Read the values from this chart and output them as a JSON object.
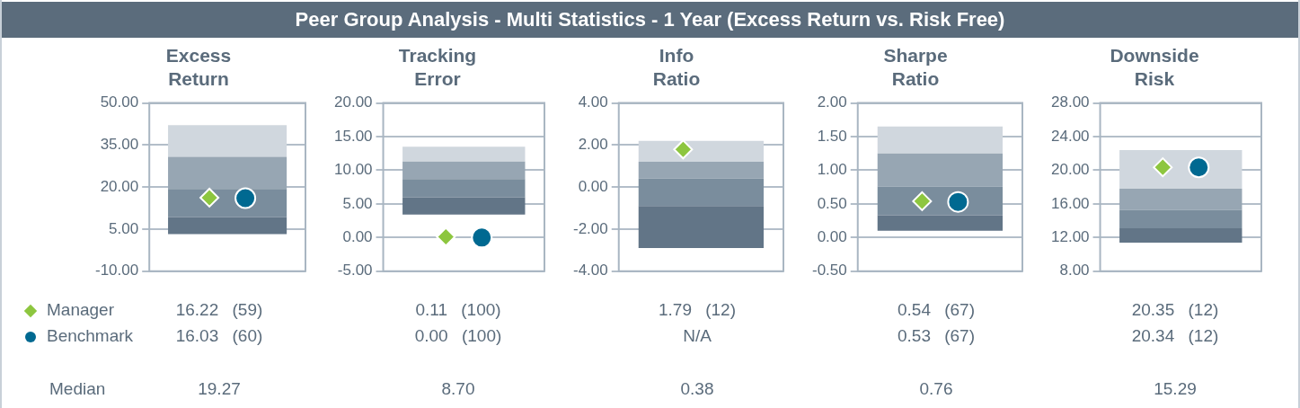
{
  "chart_data": [
    {
      "type": "other",
      "title": "Peer Group Analysis - Multi Statistics - 1 Year (Excess Return vs. Risk Free)",
      "annotations": [
        "Median"
      ]
    },
    {
      "type": "bar",
      "title": "Excess Return",
      "categories": [
        null
      ],
      "grid": "y",
      "legend": "bottom left",
      "ylim": [
        -10,
        50
      ],
      "yticks": [
        {
          "value": -10,
          "label": "-10.00"
        },
        {
          "value": 5,
          "label": "5.00"
        },
        {
          "value": 20,
          "label": "20.00"
        },
        {
          "value": 35,
          "label": "35.00"
        },
        {
          "value": 50,
          "label": "50.00"
        }
      ],
      "annotations": [
        "16.22 (59)",
        "16.03 (60)",
        "19.27"
      ],
      "series": [
        {
          "color": "#627587",
          "base": [
            3.2
          ],
          "values": [
            6.1
          ]
        },
        {
          "color": "#7a8d9d",
          "base": [
            9.3
          ],
          "values": [
            10.0
          ]
        },
        {
          "color": "#97a6b3",
          "base": [
            19.3
          ],
          "values": [
            11.5
          ]
        },
        {
          "color": "#d0d7de",
          "base": [
            30.8
          ],
          "values": [
            11.3
          ]
        },
        {
          "type": "scatter",
          "name": "Manager",
          "marker": "diamond",
          "color": "#8dc63f",
          "values": [
            16.22
          ]
        },
        {
          "type": "scatter",
          "name": "Benchmark",
          "marker": "circle",
          "color": "#006991",
          "values": [
            16.03
          ]
        }
      ]
    },
    {
      "type": "bar",
      "title": "Tracking Error",
      "categories": [
        null
      ],
      "grid": "y",
      "ylim": [
        -5,
        20
      ],
      "yticks": [
        {
          "value": -5,
          "label": "-5.00"
        },
        {
          "value": 0,
          "label": "0.00"
        },
        {
          "value": 5,
          "label": "5.00"
        },
        {
          "value": 10,
          "label": "10.00"
        },
        {
          "value": 15,
          "label": "15.00"
        },
        {
          "value": 20,
          "label": "20.00"
        }
      ],
      "annotations": [
        "0.11 (100)",
        "0.00 (100)",
        "8.70"
      ],
      "series": [
        {
          "color": "#627587",
          "base": [
            3.4
          ],
          "values": [
            2.6
          ]
        },
        {
          "color": "#7a8d9d",
          "base": [
            6.0
          ],
          "values": [
            2.7
          ]
        },
        {
          "color": "#97a6b3",
          "base": [
            8.7
          ],
          "values": [
            2.6
          ]
        },
        {
          "color": "#d0d7de",
          "base": [
            11.3
          ],
          "values": [
            2.2
          ]
        },
        {
          "type": "scatter",
          "marker": "diamond",
          "color": "#8dc63f",
          "values": [
            0.11
          ]
        },
        {
          "type": "scatter",
          "marker": "circle",
          "color": "#006991",
          "values": [
            0.0
          ]
        }
      ]
    },
    {
      "type": "bar",
      "title": "Info Ratio",
      "categories": [
        null
      ],
      "grid": "y",
      "ylim": [
        -4,
        4
      ],
      "yticks": [
        {
          "value": -4,
          "label": "-4.00"
        },
        {
          "value": -2,
          "label": "-2.00"
        },
        {
          "value": 0,
          "label": "0.00"
        },
        {
          "value": 2,
          "label": "2.00"
        },
        {
          "value": 4,
          "label": "4.00"
        }
      ],
      "annotations": [
        "1.79 (12)",
        "N/A",
        "0.38"
      ],
      "series": [
        {
          "color": "#627587",
          "base": [
            -2.9
          ],
          "values": [
            2.0
          ]
        },
        {
          "color": "#7a8d9d",
          "base": [
            -0.9
          ],
          "values": [
            1.3
          ]
        },
        {
          "color": "#97a6b3",
          "base": [
            0.4
          ],
          "values": [
            0.8
          ]
        },
        {
          "color": "#d0d7de",
          "base": [
            1.2
          ],
          "values": [
            1.0
          ]
        },
        {
          "type": "scatter",
          "marker": "diamond",
          "color": "#8dc63f",
          "values": [
            1.79
          ]
        },
        {
          "type": "scatter",
          "marker": "circle",
          "color": "#006991",
          "values": [
            null
          ]
        }
      ]
    },
    {
      "type": "bar",
      "title": "Sharpe Ratio",
      "categories": [
        null
      ],
      "grid": "y",
      "ylim": [
        -0.5,
        2
      ],
      "yticks": [
        {
          "value": -0.5,
          "label": "-0.50"
        },
        {
          "value": 0,
          "label": "0.00"
        },
        {
          "value": 0.5,
          "label": "0.50"
        },
        {
          "value": 1,
          "label": "1.00"
        },
        {
          "value": 1.5,
          "label": "1.50"
        },
        {
          "value": 2,
          "label": "2.00"
        }
      ],
      "annotations": [
        "0.54 (67)",
        "0.53 (67)",
        "0.76"
      ],
      "series": [
        {
          "color": "#627587",
          "base": [
            0.1
          ],
          "values": [
            0.23
          ]
        },
        {
          "color": "#7a8d9d",
          "base": [
            0.33
          ],
          "values": [
            0.43
          ]
        },
        {
          "color": "#97a6b3",
          "base": [
            0.76
          ],
          "values": [
            0.49
          ]
        },
        {
          "color": "#d0d7de",
          "base": [
            1.25
          ],
          "values": [
            0.4
          ]
        },
        {
          "type": "scatter",
          "marker": "diamond",
          "color": "#8dc63f",
          "values": [
            0.54
          ]
        },
        {
          "type": "scatter",
          "marker": "circle",
          "color": "#006991",
          "values": [
            0.53
          ]
        }
      ]
    },
    {
      "type": "bar",
      "title": "Downside Risk",
      "categories": [
        null
      ],
      "grid": "y",
      "ylim": [
        8,
        28
      ],
      "yticks": [
        {
          "value": 8,
          "label": "8.00"
        },
        {
          "value": 12,
          "label": "12.00"
        },
        {
          "value": 16,
          "label": "16.00"
        },
        {
          "value": 20,
          "label": "20.00"
        },
        {
          "value": 24,
          "label": "24.00"
        },
        {
          "value": 28,
          "label": "28.00"
        }
      ],
      "annotations": [
        "20.35 (12)",
        "20.34 (12)",
        "15.29"
      ],
      "series": [
        {
          "color": "#627587",
          "base": [
            11.4
          ],
          "values": [
            1.7
          ]
        },
        {
          "color": "#7a8d9d",
          "base": [
            13.1
          ],
          "values": [
            2.2
          ]
        },
        {
          "color": "#97a6b3",
          "base": [
            15.3
          ],
          "values": [
            2.5
          ]
        },
        {
          "color": "#d0d7de",
          "base": [
            17.8
          ],
          "values": [
            4.6
          ]
        },
        {
          "type": "scatter",
          "marker": "diamond",
          "color": "#8dc63f",
          "values": [
            20.35
          ]
        },
        {
          "type": "scatter",
          "marker": "circle",
          "color": "#006991",
          "values": [
            20.34
          ]
        }
      ]
    }
  ]
}
